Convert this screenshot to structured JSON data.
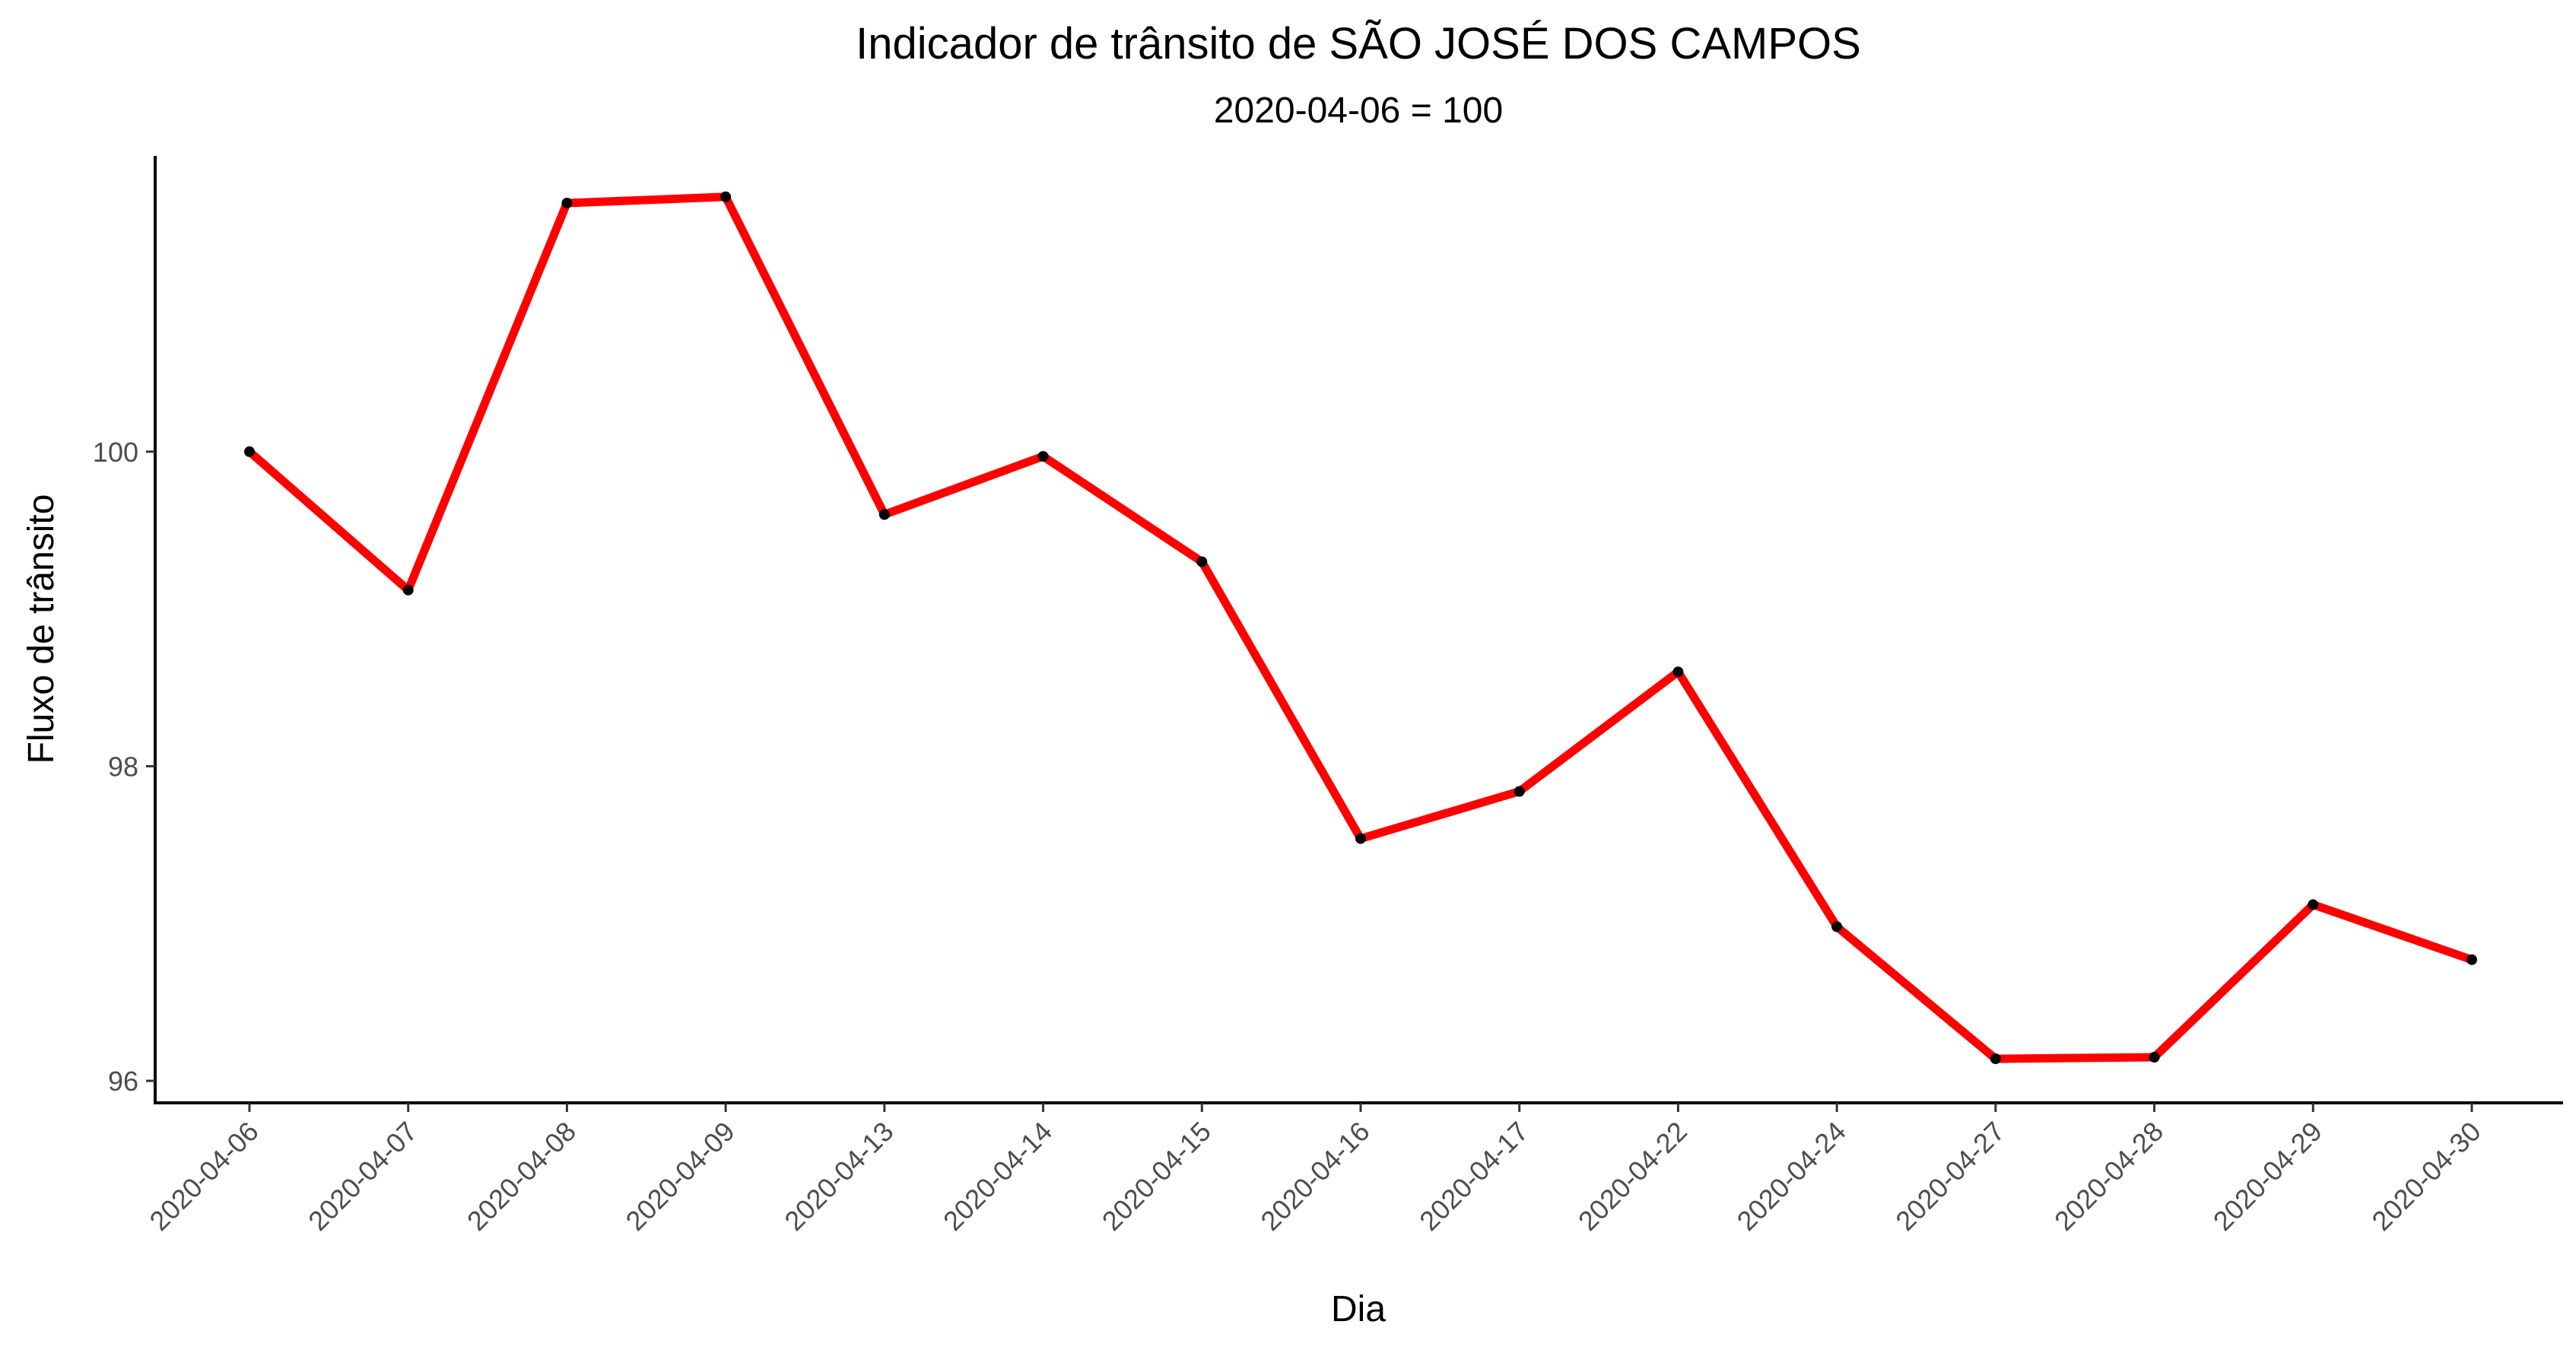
{
  "chart_data": {
    "type": "line",
    "title": "Indicador de trânsito de SÃO JOSÉ DOS CAMPOS",
    "subtitle": "2020-04-06 = 100",
    "xlabel": "Dia",
    "ylabel": "Fluxo de trânsito",
    "categories": [
      "2020-04-06",
      "2020-04-07",
      "2020-04-08",
      "2020-04-09",
      "2020-04-13",
      "2020-04-14",
      "2020-04-15",
      "2020-04-16",
      "2020-04-17",
      "2020-04-22",
      "2020-04-24",
      "2020-04-27",
      "2020-04-28",
      "2020-04-29",
      "2020-04-30"
    ],
    "series": [
      {
        "values": [
          100.0,
          99.12,
          101.58,
          101.62,
          99.6,
          99.97,
          99.3,
          97.54,
          97.84,
          98.6,
          96.98,
          96.14,
          96.15,
          97.12,
          96.77
        ]
      }
    ],
    "ylim": [
      95.86,
      101.88
    ],
    "yticks": [
      96,
      98,
      100
    ],
    "grid": false,
    "legend": "none",
    "colors": {
      "line": "#ff0000",
      "points": "#000000"
    }
  }
}
